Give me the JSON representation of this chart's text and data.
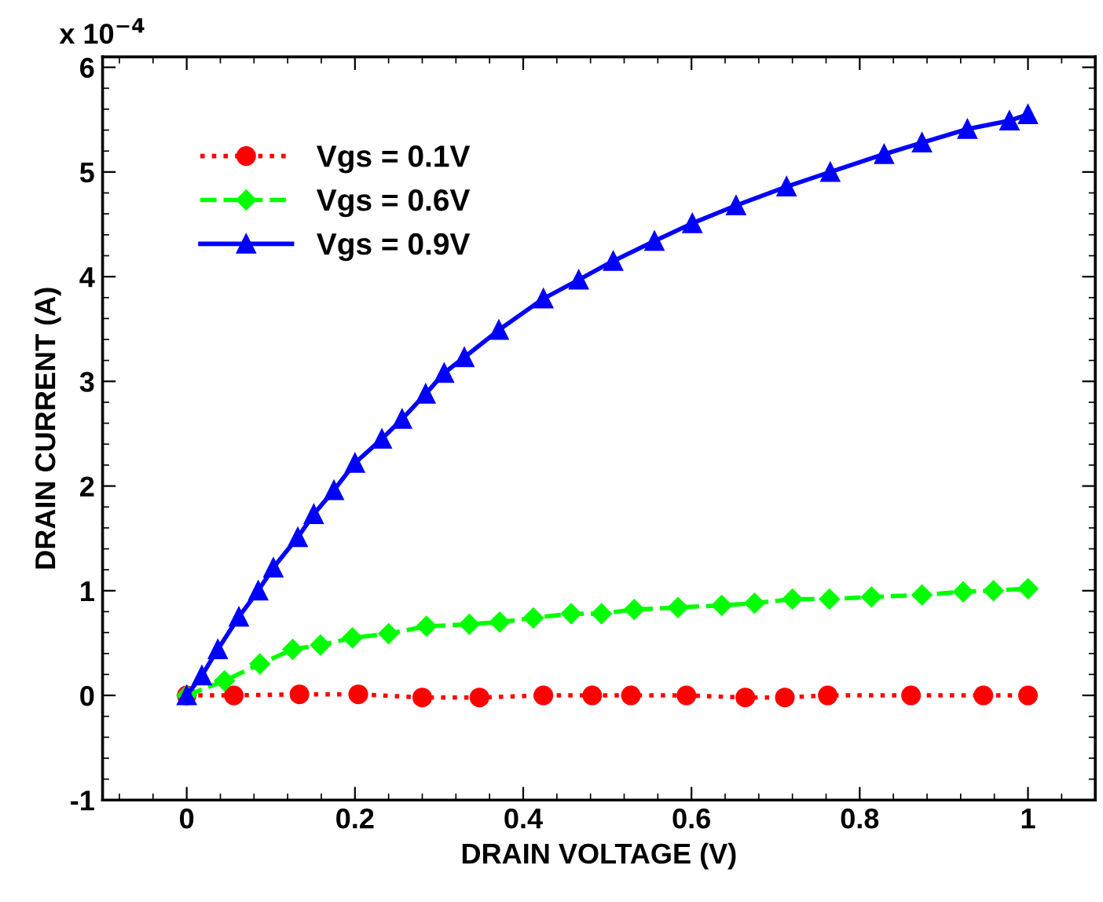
{
  "chart_data": {
    "type": "line",
    "xlabel": "DRAIN VOLTAGE (V)",
    "ylabel": "DRAIN CURRENT (A)",
    "annotations": [
      "x 10$^{−4}$"
    ],
    "xlim": [
      -0.1,
      1.08
    ],
    "ylim": [
      -1,
      6.1
    ],
    "xticks": [
      0,
      0.2,
      0.4,
      0.6,
      0.8,
      1
    ],
    "yticks": [
      -1,
      0,
      1,
      2,
      3,
      4,
      5,
      6
    ],
    "grid": false,
    "legend": "top left",
    "series": [
      {
        "name": "Vgs = 0.1V",
        "color": "#ff0000",
        "marker": "circle",
        "line_style": "dotted",
        "x": [
          0,
          0.056,
          0.134,
          0.204,
          0.28,
          0.348,
          0.424,
          0.482,
          0.528,
          0.594,
          0.664,
          0.711,
          0.762,
          0.861,
          0.947,
          1.0
        ],
        "values": [
          0,
          0,
          0.01,
          0.01,
          -0.02,
          -0.02,
          0,
          0,
          0,
          0,
          -0.02,
          -0.02,
          0,
          0,
          0,
          0
        ]
      },
      {
        "name": "Vgs = 0.6V",
        "color": "#00ff00",
        "marker": "diamond",
        "line_style": "dashed",
        "x": [
          0,
          0.045,
          0.087,
          0.126,
          0.159,
          0.197,
          0.24,
          0.285,
          0.336,
          0.372,
          0.412,
          0.457,
          0.493,
          0.532,
          0.584,
          0.636,
          0.675,
          0.72,
          0.764,
          0.814,
          0.874,
          0.923,
          0.959,
          1.0
        ],
        "values": [
          0,
          0.14,
          0.3,
          0.44,
          0.48,
          0.55,
          0.59,
          0.66,
          0.68,
          0.7,
          0.74,
          0.78,
          0.78,
          0.82,
          0.84,
          0.86,
          0.88,
          0.92,
          0.92,
          0.94,
          0.96,
          0.99,
          1.0,
          1.02
        ]
      },
      {
        "name": "Vgs = 0.9V",
        "color": "#0000ff",
        "marker": "triangle",
        "line_style": "solid",
        "x": [
          0,
          0.018,
          0.037,
          0.062,
          0.085,
          0.103,
          0.132,
          0.151,
          0.175,
          0.2,
          0.232,
          0.256,
          0.284,
          0.306,
          0.33,
          0.371,
          0.424,
          0.466,
          0.507,
          0.556,
          0.601,
          0.653,
          0.713,
          0.765,
          0.829,
          0.874,
          0.928,
          0.978,
          1.0
        ],
        "values": [
          0,
          0.19,
          0.44,
          0.75,
          1.0,
          1.22,
          1.51,
          1.73,
          1.96,
          2.22,
          2.45,
          2.64,
          2.88,
          3.08,
          3.23,
          3.49,
          3.79,
          3.97,
          4.15,
          4.34,
          4.51,
          4.68,
          4.86,
          5.0,
          5.17,
          5.28,
          5.41,
          5.49,
          5.55
        ]
      }
    ]
  }
}
